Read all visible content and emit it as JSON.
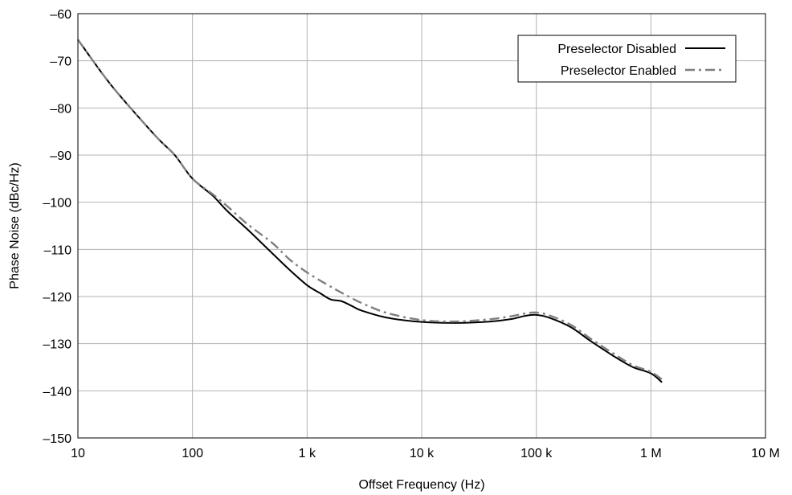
{
  "chart_data": {
    "type": "line",
    "title": "",
    "xlabel": "Offset Frequency (Hz)",
    "ylabel": "Phase Noise (dBc/Hz)",
    "x_scale": "log",
    "xlim": [
      10,
      10000000
    ],
    "ylim": [
      -150,
      -60
    ],
    "grid": true,
    "legend_position": "top-right",
    "x_ticks": [
      {
        "value": 10,
        "label": "10"
      },
      {
        "value": 100,
        "label": "100"
      },
      {
        "value": 1000,
        "label": "1 k"
      },
      {
        "value": 10000,
        "label": "10 k"
      },
      {
        "value": 100000,
        "label": "100 k"
      },
      {
        "value": 1000000,
        "label": "1 M"
      },
      {
        "value": 10000000,
        "label": "10 M"
      }
    ],
    "y_ticks": [
      {
        "value": -60,
        "label": "–60"
      },
      {
        "value": -70,
        "label": "–70"
      },
      {
        "value": -80,
        "label": "–80"
      },
      {
        "value": -90,
        "label": "–90"
      },
      {
        "value": -100,
        "label": "–100"
      },
      {
        "value": -110,
        "label": "–110"
      },
      {
        "value": -120,
        "label": "–120"
      },
      {
        "value": -130,
        "label": "–130"
      },
      {
        "value": -140,
        "label": "–140"
      },
      {
        "value": -150,
        "label": "–150"
      }
    ],
    "series": [
      {
        "name": "Preselector Disabled",
        "color": "#000000",
        "dash": "solid",
        "x": [
          10,
          15,
          20,
          30,
          50,
          70,
          100,
          150,
          200,
          300,
          500,
          700,
          1000,
          1300,
          1600,
          2000,
          2500,
          3000,
          5000,
          10000,
          20000,
          40000,
          60000,
          80000,
          100000,
          130000,
          200000,
          300000,
          500000,
          700000,
          1000000,
          1250000
        ],
        "y": [
          -65.5,
          -71.5,
          -75.5,
          -80.5,
          -86.5,
          -90.0,
          -95.0,
          -98.6,
          -101.8,
          -105.7,
          -110.9,
          -114.3,
          -117.6,
          -119.3,
          -120.6,
          -121.0,
          -122.1,
          -123.0,
          -124.5,
          -125.4,
          -125.6,
          -125.3,
          -124.8,
          -124.1,
          -123.9,
          -124.5,
          -126.5,
          -129.5,
          -133.0,
          -135.0,
          -136.3,
          -138.2
        ]
      },
      {
        "name": "Preselector Enabled",
        "color": "#7f7f7f",
        "dash": "dash-dot",
        "x": [
          10,
          15,
          20,
          30,
          50,
          70,
          100,
          150,
          200,
          300,
          500,
          700,
          1000,
          1500,
          2000,
          3000,
          5000,
          10000,
          20000,
          40000,
          60000,
          80000,
          100000,
          130000,
          200000,
          300000,
          500000,
          700000,
          1000000,
          1300000
        ],
        "y": [
          -65.5,
          -71.5,
          -75.5,
          -80.5,
          -86.5,
          -90.0,
          -95.0,
          -98.3,
          -100.8,
          -104.6,
          -108.7,
          -112.1,
          -114.9,
          -117.5,
          -119.2,
          -121.4,
          -123.5,
          -125.0,
          -125.3,
          -124.8,
          -124.2,
          -123.6,
          -123.4,
          -124.0,
          -126.0,
          -129.0,
          -132.5,
          -134.6,
          -136.0,
          -137.9
        ]
      }
    ]
  }
}
